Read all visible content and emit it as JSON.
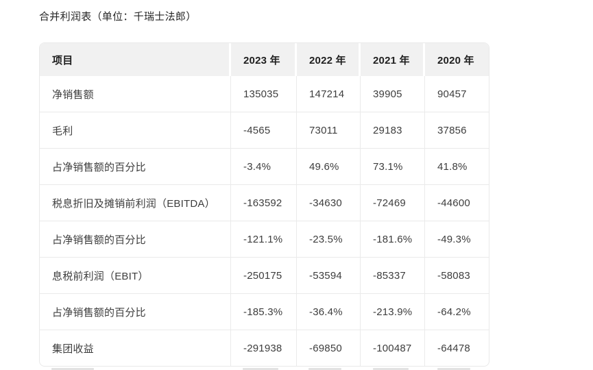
{
  "page": {
    "title": "合并利润表（单位：千瑞士法郎）"
  },
  "colors": {
    "header_bg": "#f1f1f1",
    "header_text": "#1f1f1f",
    "body_text": "#3d3d3d",
    "separator": "#eaeaea",
    "page_bg": "#ffffff"
  },
  "table": {
    "columns": [
      "项目",
      "2023 年",
      "2022 年",
      "2021 年",
      "2020 年"
    ],
    "rows": [
      {
        "label": "净销售额",
        "values": [
          "135035",
          "147214",
          "39905",
          "90457"
        ]
      },
      {
        "label": "毛利",
        "values": [
          "-4565",
          "73011",
          "29183",
          "37856"
        ]
      },
      {
        "label": "占净销售额的百分比",
        "values": [
          "-3.4%",
          "49.6%",
          "73.1%",
          "41.8%"
        ]
      },
      {
        "label": "税息折旧及摊销前利润（EBITDA）",
        "values": [
          "-163592",
          "-34630",
          "-72469",
          "-44600"
        ]
      },
      {
        "label": "占净销售额的百分比",
        "values": [
          "-121.1%",
          "-23.5%",
          "-181.6%",
          "-49.3%"
        ]
      },
      {
        "label": "息税前利润（EBIT）",
        "values": [
          "-250175",
          "-53594",
          "-85337",
          "-58083"
        ]
      },
      {
        "label": "占净销售额的百分比",
        "values": [
          "-185.3%",
          "-36.4%",
          "-213.9%",
          "-64.2%"
        ]
      },
      {
        "label": "集团收益",
        "values": [
          "-291938",
          "-69850",
          "-100487",
          "-64478"
        ]
      }
    ]
  }
}
